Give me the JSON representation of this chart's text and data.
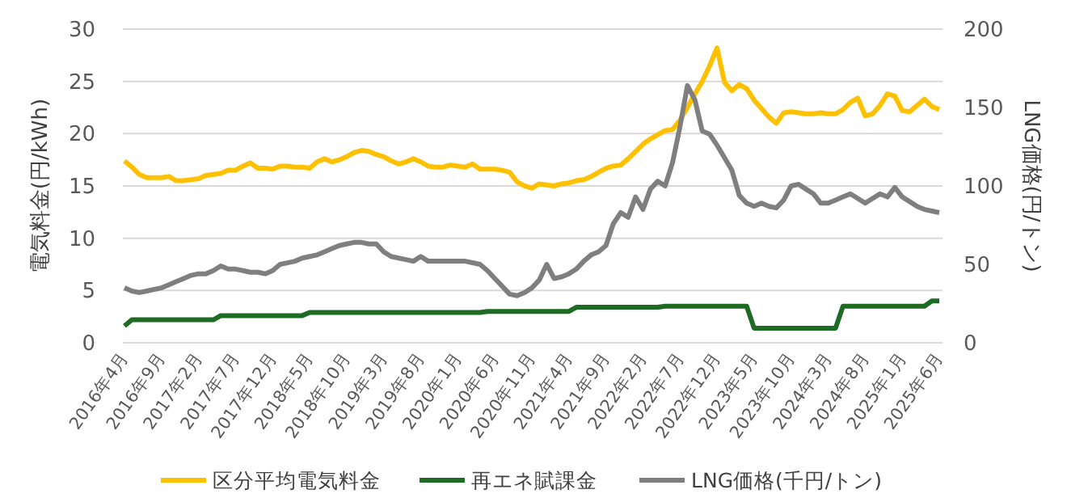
{
  "chart_data": {
    "type": "line",
    "ylabel": "電気料金(円/kWh)",
    "y2label": "LNG価格(円/トン)",
    "categories": [
      "2016年4月",
      null,
      null,
      null,
      null,
      "2016年9月",
      null,
      null,
      null,
      null,
      "2017年2月",
      null,
      null,
      null,
      null,
      "2017年7月",
      null,
      null,
      null,
      null,
      "2017年12月",
      null,
      null,
      null,
      null,
      "2018年5月",
      null,
      null,
      null,
      null,
      "2018年10月",
      null,
      null,
      null,
      null,
      "2019年3月",
      null,
      null,
      null,
      null,
      "2019年8月",
      null,
      null,
      null,
      null,
      "2020年1月",
      null,
      null,
      null,
      null,
      "2020年6月",
      null,
      null,
      null,
      null,
      "2020年11月",
      null,
      null,
      null,
      null,
      "2021年4月",
      null,
      null,
      null,
      null,
      "2021年9月",
      null,
      null,
      null,
      null,
      "2022年2月",
      null,
      null,
      null,
      null,
      "2022年7月",
      null,
      null,
      null,
      null,
      "2022年12月",
      null,
      null,
      null,
      null,
      "2023年5月",
      null,
      null,
      null,
      null,
      "2023年10月",
      null,
      null,
      null,
      null,
      "2024年3月",
      null,
      null,
      null,
      null,
      "2024年8月",
      null,
      null,
      null,
      null,
      "2025年1月",
      null,
      null,
      null,
      null,
      "2025年6月"
    ],
    "series": [
      {
        "name": "区分平均電気料金",
        "color": "#ffc000",
        "values": [
          17.4,
          16.8,
          16.1,
          15.8,
          15.8,
          15.8,
          15.9,
          15.5,
          15.5,
          15.6,
          15.7,
          16.0,
          16.1,
          16.2,
          16.5,
          16.5,
          16.9,
          17.2,
          16.7,
          16.7,
          16.6,
          16.9,
          16.9,
          16.8,
          16.8,
          16.7,
          17.3,
          17.6,
          17.3,
          17.5,
          17.8,
          18.2,
          18.4,
          18.3,
          18.0,
          17.8,
          17.4,
          17.1,
          17.3,
          17.6,
          17.3,
          16.9,
          16.8,
          16.8,
          17.0,
          16.9,
          16.8,
          17.1,
          16.6,
          16.6,
          16.6,
          16.5,
          16.3,
          15.4,
          15.0,
          14.8,
          15.2,
          15.1,
          15.0,
          15.2,
          15.3,
          15.5,
          15.6,
          15.9,
          16.3,
          16.7,
          16.9,
          17.0,
          17.6,
          18.3,
          19.0,
          19.5,
          19.9,
          20.3,
          20.4,
          21.3,
          22.5,
          23.8,
          25.0,
          26.5,
          28.2,
          24.9,
          24.1,
          24.7,
          24.3,
          23.2,
          22.4,
          21.6,
          21.0,
          22.0,
          22.1,
          22.0,
          21.9,
          21.9,
          22.0,
          21.9,
          21.9,
          22.3,
          23.0,
          23.4,
          21.7,
          21.9,
          22.7,
          23.8,
          23.6,
          22.2,
          22.1,
          22.7,
          23.3,
          22.6,
          22.3
        ]
      },
      {
        "name": "再エネ賦課金",
        "color": "#1e6b23",
        "values": [
          1.6,
          2.2,
          2.2,
          2.2,
          2.2,
          2.2,
          2.2,
          2.2,
          2.2,
          2.2,
          2.2,
          2.2,
          2.2,
          2.6,
          2.6,
          2.6,
          2.6,
          2.6,
          2.6,
          2.6,
          2.6,
          2.6,
          2.6,
          2.6,
          2.6,
          2.9,
          2.9,
          2.9,
          2.9,
          2.9,
          2.9,
          2.9,
          2.9,
          2.9,
          2.9,
          2.9,
          2.9,
          2.9,
          2.9,
          2.9,
          2.9,
          2.9,
          2.9,
          2.9,
          2.9,
          2.9,
          2.9,
          2.9,
          2.9,
          3.0,
          3.0,
          3.0,
          3.0,
          3.0,
          3.0,
          3.0,
          3.0,
          3.0,
          3.0,
          3.0,
          3.0,
          3.4,
          3.4,
          3.4,
          3.4,
          3.4,
          3.4,
          3.4,
          3.4,
          3.4,
          3.4,
          3.4,
          3.4,
          3.5,
          3.5,
          3.5,
          3.5,
          3.5,
          3.5,
          3.5,
          3.5,
          3.5,
          3.5,
          3.5,
          3.5,
          1.4,
          1.4,
          1.4,
          1.4,
          1.4,
          1.4,
          1.4,
          1.4,
          1.4,
          1.4,
          1.4,
          1.4,
          3.5,
          3.5,
          3.5,
          3.5,
          3.5,
          3.5,
          3.5,
          3.5,
          3.5,
          3.5,
          3.5,
          3.5,
          4.0,
          4.0
        ]
      },
      {
        "name": "LNG価格(千円/トン)",
        "color": "#7f7f7f",
        "axis": "y2",
        "values": [
          35,
          33,
          32,
          33,
          34,
          35,
          37,
          39,
          41,
          43,
          44,
          44,
          46,
          49,
          47,
          47,
          46,
          45,
          45,
          44,
          46,
          50,
          51,
          52,
          54,
          55,
          56,
          58,
          60,
          62,
          63,
          64,
          64,
          63,
          63,
          58,
          55,
          54,
          53,
          52,
          55,
          52,
          52,
          52,
          52,
          52,
          52,
          51,
          50,
          46,
          41,
          36,
          31,
          30,
          32,
          35,
          40,
          50,
          41,
          42,
          44,
          47,
          52,
          56,
          58,
          62,
          76,
          83,
          80,
          93,
          85,
          98,
          103,
          100,
          115,
          138,
          164,
          155,
          135,
          133,
          126,
          118,
          110,
          94,
          89,
          87,
          89,
          87,
          86,
          91,
          100,
          101,
          98,
          95,
          89,
          89,
          91,
          93,
          95,
          92,
          89,
          92,
          95,
          93,
          99,
          93,
          90,
          87,
          85,
          84,
          83
        ]
      }
    ],
    "ylim": [
      0,
      30
    ],
    "yticks": [
      0,
      5,
      10,
      15,
      20,
      25,
      30
    ],
    "y2lim": [
      0,
      200
    ],
    "y2ticks": [
      0,
      50,
      100,
      150,
      200
    ],
    "grid": "y",
    "legend": "bottom"
  }
}
